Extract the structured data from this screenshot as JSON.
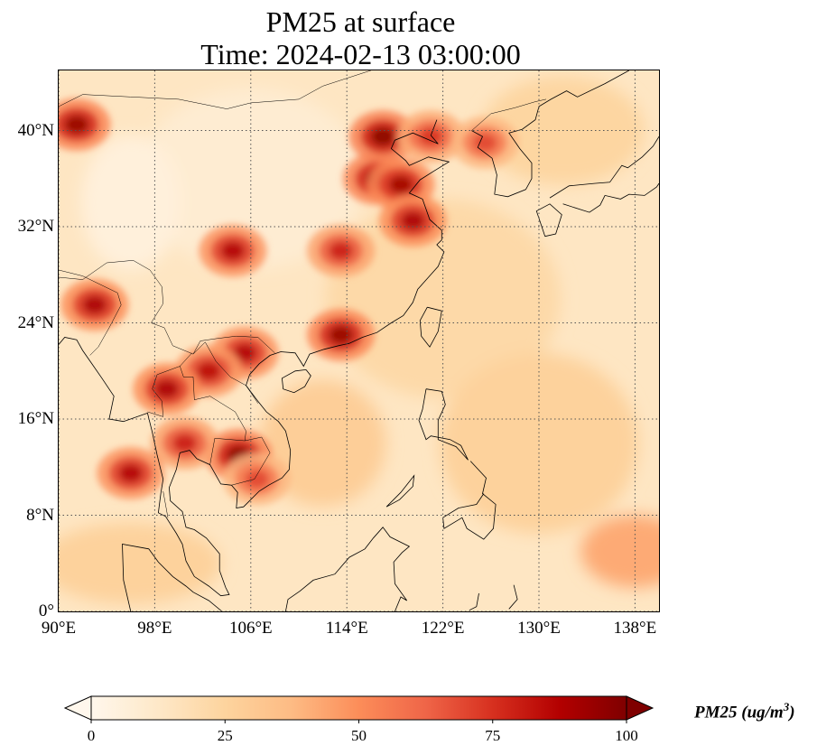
{
  "title_line1": "PM25 at surface",
  "title_line2": "Time: 2024-02-13 03:00:00",
  "map": {
    "extent": {
      "lon_min": 90,
      "lon_max": 140,
      "lat_min": 0,
      "lat_max": 45
    },
    "lat_ticks": [
      {
        "value": 40,
        "label": "40°N"
      },
      {
        "value": 32,
        "label": "32°N"
      },
      {
        "value": 24,
        "label": "24°N"
      },
      {
        "value": 16,
        "label": "16°N"
      },
      {
        "value": 8,
        "label": "8°N"
      },
      {
        "value": 0,
        "label": "0°"
      }
    ],
    "lon_ticks": [
      {
        "value": 90,
        "label": "90°E"
      },
      {
        "value": 98,
        "label": "98°E"
      },
      {
        "value": 106,
        "label": "106°E"
      },
      {
        "value": 114,
        "label": "114°E"
      },
      {
        "value": 122,
        "label": "122°E"
      },
      {
        "value": 130,
        "label": "130°E"
      },
      {
        "value": 138,
        "label": "138°E"
      }
    ],
    "gridlines": true
  },
  "colorbar": {
    "label": "PM25 (ug/m",
    "label_sup": "3",
    "label_close": ")",
    "min": 0,
    "max": 100,
    "extend": "both",
    "ticks": [
      {
        "value": 0,
        "label": "0"
      },
      {
        "value": 25,
        "label": "25"
      },
      {
        "value": 50,
        "label": "50"
      },
      {
        "value": 75,
        "label": "75"
      },
      {
        "value": 100,
        "label": "100"
      }
    ],
    "colormap": "OrRd",
    "colors": [
      "#fff7ec",
      "#fee8c8",
      "#fdd49e",
      "#fdbb84",
      "#fc8d59",
      "#ef6548",
      "#d7301f",
      "#b30000",
      "#7f0000"
    ]
  },
  "hotspots": [
    {
      "name": "north-china-plain",
      "lon": 116.5,
      "lat": 36.0,
      "level": 95
    },
    {
      "name": "beijing-tianjin",
      "lon": 117.0,
      "lat": 39.5,
      "level": 98
    },
    {
      "name": "shandong",
      "lon": 118.5,
      "lat": 35.5,
      "level": 92
    },
    {
      "name": "jiangsu",
      "lon": 119.5,
      "lat": 32.5,
      "level": 90
    },
    {
      "name": "wuhan-region",
      "lon": 113.5,
      "lat": 30.0,
      "level": 80
    },
    {
      "name": "sichuan-basin",
      "lon": 104.5,
      "lat": 30.0,
      "level": 88
    },
    {
      "name": "pearl-river-delta",
      "lon": 113.5,
      "lat": 23.0,
      "level": 95
    },
    {
      "name": "northern-vietnam",
      "lon": 105.5,
      "lat": 21.5,
      "level": 88
    },
    {
      "name": "laos-north",
      "lon": 102.5,
      "lat": 20.0,
      "level": 85
    },
    {
      "name": "northern-thailand",
      "lon": 99.0,
      "lat": 18.5,
      "level": 90
    },
    {
      "name": "cambodia",
      "lon": 105.0,
      "lat": 13.0,
      "level": 97
    },
    {
      "name": "central-thailand",
      "lon": 100.5,
      "lat": 14.0,
      "level": 80
    },
    {
      "name": "myanmar-coast",
      "lon": 96.0,
      "lat": 11.5,
      "level": 88
    },
    {
      "name": "northeast-india",
      "lon": 93.0,
      "lat": 25.5,
      "level": 90
    },
    {
      "name": "mongolia-west",
      "lon": 91.5,
      "lat": 40.5,
      "level": 95
    },
    {
      "name": "bohai-coast",
      "lon": 121.0,
      "lat": 39.5,
      "level": 75
    },
    {
      "name": "north-korea",
      "lon": 125.5,
      "lat": 39.0,
      "level": 70
    },
    {
      "name": "south-vietnam",
      "lon": 106.5,
      "lat": 11.0,
      "level": 70
    }
  ]
}
